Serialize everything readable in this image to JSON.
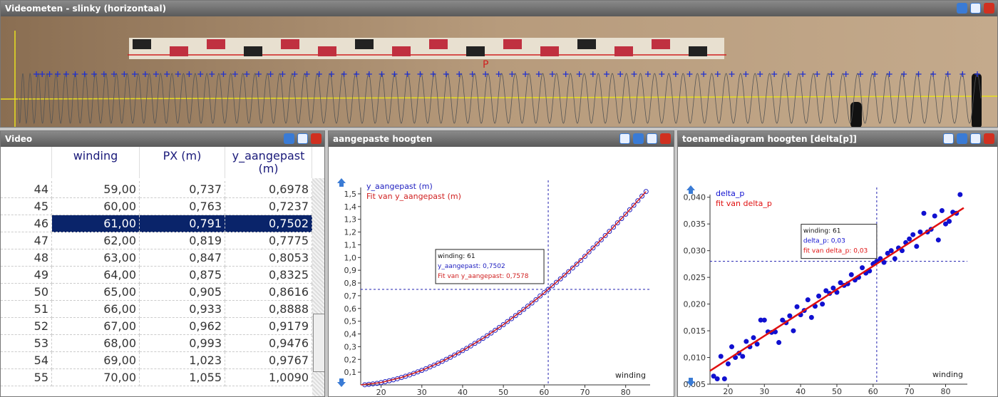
{
  "video_window": {
    "title": "Videometen - slinky (horizontaal)",
    "point_label": "P"
  },
  "table_window": {
    "title": "Video",
    "headers": [
      "winding",
      "PX (m)",
      "y_aangepast (m)"
    ],
    "rows": [
      [
        "44",
        "59,00",
        "0,737",
        "0,6978"
      ],
      [
        "45",
        "60,00",
        "0,763",
        "0,7237"
      ],
      [
        "46",
        "61,00",
        "0,791",
        "0,7502"
      ],
      [
        "47",
        "62,00",
        "0,819",
        "0,7775"
      ],
      [
        "48",
        "63,00",
        "0,847",
        "0,8053"
      ],
      [
        "49",
        "64,00",
        "0,875",
        "0,8325"
      ],
      [
        "50",
        "65,00",
        "0,905",
        "0,8616"
      ],
      [
        "51",
        "66,00",
        "0,933",
        "0,8888"
      ],
      [
        "52",
        "67,00",
        "0,962",
        "0,9179"
      ],
      [
        "53",
        "68,00",
        "0,993",
        "0,9476"
      ],
      [
        "54",
        "69,00",
        "1,023",
        "0,9767"
      ],
      [
        "55",
        "70,00",
        "1,055",
        "1,0090"
      ]
    ],
    "selected_row": 2
  },
  "chart_data": [
    {
      "type": "scatter",
      "title": "aangepaste hoogten",
      "x_label": "winding",
      "xlim": [
        15,
        86
      ],
      "xticks": [
        20,
        30,
        40,
        50,
        60,
        70,
        80
      ],
      "ylim": [
        0,
        1.55
      ],
      "yticks": [
        {
          "value": 0.1,
          "label": "0,1"
        },
        {
          "value": 0.2,
          "label": "0,2"
        },
        {
          "value": 0.3,
          "label": "0,3"
        },
        {
          "value": 0.4,
          "label": "0,4"
        },
        {
          "value": 0.5,
          "label": "0,5"
        },
        {
          "value": 0.6,
          "label": "0,6"
        },
        {
          "value": 0.7,
          "label": "0,7"
        },
        {
          "value": 0.8,
          "label": "0,8"
        },
        {
          "value": 0.9,
          "label": "0,9"
        },
        {
          "value": 1.0,
          "label": "1,0"
        },
        {
          "value": 1.1,
          "label": "1,1"
        },
        {
          "value": 1.2,
          "label": "1,2"
        },
        {
          "value": 1.3,
          "label": "1,3"
        },
        {
          "value": 1.4,
          "label": "1,4"
        },
        {
          "value": 1.5,
          "label": "1,5"
        }
      ],
      "series": [
        {
          "name": "y_aangepast (m)",
          "color": "#2020c0",
          "style": "markers",
          "x": [
            16,
            17,
            18,
            19,
            20,
            21,
            22,
            23,
            24,
            25,
            26,
            27,
            28,
            29,
            30,
            31,
            32,
            33,
            34,
            35,
            36,
            37,
            38,
            39,
            40,
            41,
            42,
            43,
            44,
            45,
            46,
            47,
            48,
            49,
            50,
            51,
            52,
            53,
            54,
            55,
            56,
            57,
            58,
            59,
            60,
            61,
            62,
            63,
            64,
            65,
            66,
            67,
            68,
            69,
            70,
            71,
            72,
            73,
            74,
            75,
            76,
            77,
            78,
            79,
            80,
            81,
            82,
            83,
            84,
            85
          ],
          "values": [
            0.001,
            0.004,
            0.008,
            0.012,
            0.018,
            0.025,
            0.032,
            0.04,
            0.048,
            0.058,
            0.068,
            0.078,
            0.09,
            0.102,
            0.114,
            0.127,
            0.141,
            0.155,
            0.17,
            0.185,
            0.201,
            0.217,
            0.234,
            0.251,
            0.269,
            0.287,
            0.306,
            0.326,
            0.345,
            0.365,
            0.386,
            0.407,
            0.429,
            0.451,
            0.473,
            0.497,
            0.52,
            0.544,
            0.568,
            0.593,
            0.618,
            0.643,
            0.669,
            0.6978,
            0.7237,
            0.7502,
            0.7775,
            0.8053,
            0.8325,
            0.8616,
            0.8888,
            0.9179,
            0.9476,
            0.9767,
            1.009,
            1.044,
            1.075,
            1.107,
            1.139,
            1.172,
            1.205,
            1.238,
            1.272,
            1.306,
            1.34,
            1.375,
            1.41,
            1.446,
            1.482,
            1.518
          ]
        },
        {
          "name": "Fit van y_aangepast (m)",
          "color": "#d02020",
          "style": "line",
          "x": [
            15,
            20,
            25,
            30,
            35,
            40,
            45,
            50,
            55,
            60,
            65,
            70,
            75,
            80,
            85
          ],
          "values": [
            0,
            0.018,
            0.058,
            0.114,
            0.185,
            0.269,
            0.365,
            0.473,
            0.593,
            0.722,
            0.862,
            1.012,
            1.172,
            1.34,
            1.518
          ]
        }
      ],
      "cursor": {
        "x": 61,
        "y": 0.75
      },
      "tooltip": [
        "winding: 61",
        "y_aangepast: 0,7502",
        "Fit van y_aangepast: 0,7578"
      ]
    },
    {
      "type": "scatter",
      "title": "toenamediagram hoogten [delta[p]]",
      "x_label": "winding",
      "xlim": [
        15,
        86
      ],
      "xticks": [
        20,
        30,
        40,
        50,
        60,
        70,
        80
      ],
      "ylim": [
        0.005,
        0.0405
      ],
      "yticks": [
        {
          "value": 0.005,
          "label": "0,005"
        },
        {
          "value": 0.01,
          "label": "0,010"
        },
        {
          "value": 0.015,
          "label": "0,015"
        },
        {
          "value": 0.02,
          "label": "0,020"
        },
        {
          "value": 0.025,
          "label": "0,025"
        },
        {
          "value": 0.03,
          "label": "0,030"
        },
        {
          "value": 0.035,
          "label": "0,035"
        },
        {
          "value": 0.04,
          "label": "0,040"
        }
      ],
      "series": [
        {
          "name": "delta_p",
          "color": "#1010d0",
          "style": "markers",
          "x": [
            16,
            17,
            18,
            19,
            20,
            21,
            22,
            23,
            24,
            25,
            26,
            27,
            28,
            29,
            30,
            31,
            32,
            33,
            34,
            35,
            36,
            37,
            38,
            39,
            40,
            41,
            42,
            43,
            44,
            45,
            46,
            47,
            48,
            49,
            50,
            51,
            52,
            53,
            54,
            55,
            56,
            57,
            58,
            59,
            60,
            61,
            62,
            63,
            64,
            65,
            66,
            67,
            68,
            69,
            70,
            71,
            72,
            73,
            74,
            75,
            76,
            77,
            78,
            79,
            80,
            81,
            82,
            83,
            84
          ],
          "values": [
            0.0065,
            0.006,
            0.0102,
            0.006,
            0.0088,
            0.012,
            0.01,
            0.0108,
            0.0102,
            0.013,
            0.012,
            0.0137,
            0.0125,
            0.017,
            0.017,
            0.0148,
            0.0147,
            0.0148,
            0.0128,
            0.017,
            0.0165,
            0.0178,
            0.015,
            0.0195,
            0.018,
            0.0188,
            0.0208,
            0.0175,
            0.0196,
            0.0215,
            0.02,
            0.0225,
            0.022,
            0.023,
            0.0222,
            0.024,
            0.0235,
            0.0238,
            0.0255,
            0.0245,
            0.025,
            0.0268,
            0.0258,
            0.0262,
            0.0275,
            0.028,
            0.0285,
            0.0278,
            0.0295,
            0.03,
            0.0285,
            0.0305,
            0.03,
            0.0315,
            0.0322,
            0.033,
            0.0308,
            0.0335,
            0.037,
            0.0335,
            0.034,
            0.0365,
            0.032,
            0.0375,
            0.035,
            0.0355,
            0.0372,
            0.037,
            0.0405
          ]
        },
        {
          "name": "fit van delta_p",
          "color": "#e01010",
          "style": "line",
          "x": [
            15,
            85
          ],
          "values": [
            0.0075,
            0.038
          ]
        }
      ],
      "cursor": {
        "x": 61,
        "y": 0.028
      },
      "tooltip": [
        "winding: 61",
        "delta_p: 0,03",
        "fit van delta_p: 0,03"
      ]
    }
  ]
}
